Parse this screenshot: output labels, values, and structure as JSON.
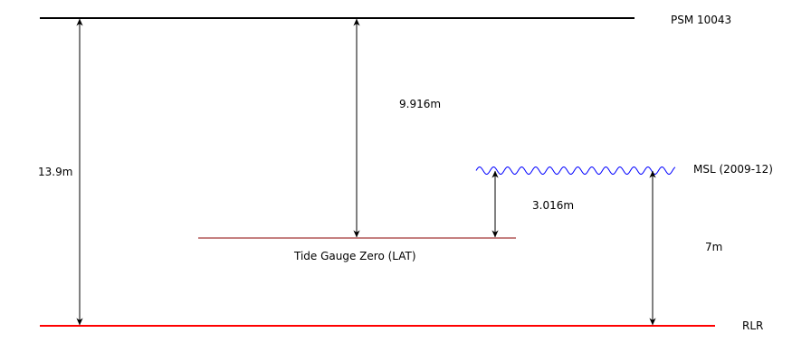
{
  "levels": {
    "psm": {
      "label": "PSM 10043",
      "color": "#000000"
    },
    "msl": {
      "label": "MSL (2009-12)",
      "color": "#0000ff"
    },
    "tgz": {
      "label": "Tide Gauge Zero (LAT)",
      "color": "#8b0000"
    },
    "rlr": {
      "label": "RLR",
      "color": "#ff0000"
    }
  },
  "dimensions": {
    "psm_to_rlr": "13.9m",
    "psm_to_tgz": "9.916m",
    "tgz_to_msl": "3.016m",
    "rlr_to_msl": "7m"
  },
  "arrow_color": "#000000"
}
